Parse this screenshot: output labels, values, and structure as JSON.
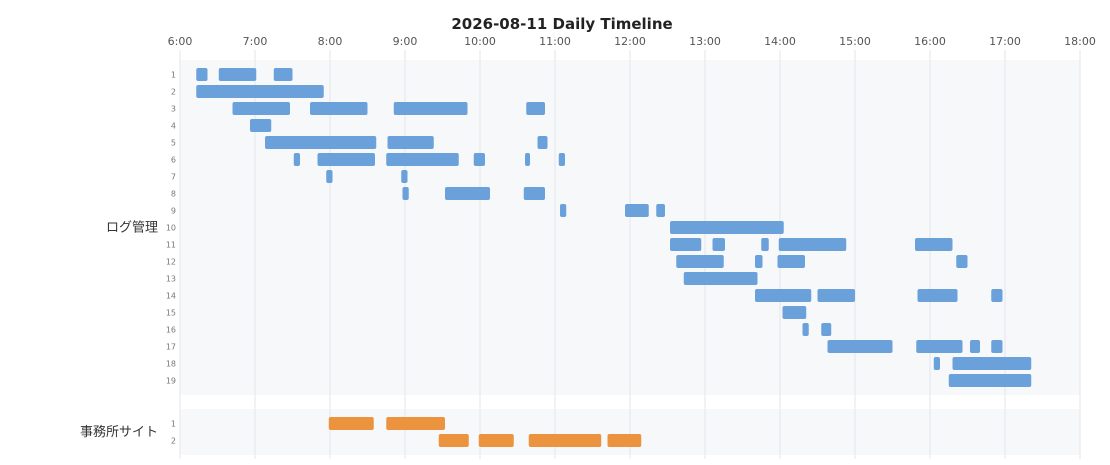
{
  "chart_data": {
    "type": "gantt",
    "title": "2026-08-11 Daily Timeline",
    "x_axis": {
      "range": [
        "6:00",
        "18:00"
      ],
      "ticks": [
        "6:00",
        "7:00",
        "8:00",
        "9:00",
        "10:00",
        "11:00",
        "12:00",
        "13:00",
        "14:00",
        "15:00",
        "16:00",
        "17:00",
        "18:00"
      ]
    },
    "grid": true,
    "colors": {
      "ログ管理": "#6aa1db",
      "事務所サイト": "#ec9340",
      "panel_bg": "#f7f8fa",
      "grid": "#e4e6ea"
    },
    "groups": [
      {
        "name": "ログ管理",
        "rows": [
          {
            "label": "1",
            "tasks": [
              [
                "6:13",
                "6:22"
              ],
              [
                "6:31",
                "7:01"
              ],
              [
                "7:15",
                "7:30"
              ]
            ]
          },
          {
            "label": "2",
            "tasks": [
              [
                "6:13",
                "7:55"
              ]
            ]
          },
          {
            "label": "3",
            "tasks": [
              [
                "6:42",
                "7:28"
              ],
              [
                "7:44",
                "8:30"
              ],
              [
                "8:51",
                "9:50"
              ],
              [
                "10:37",
                "10:52"
              ]
            ]
          },
          {
            "label": "4",
            "tasks": [
              [
                "6:56",
                "7:13"
              ]
            ]
          },
          {
            "label": "5",
            "tasks": [
              [
                "7:08",
                "8:37"
              ],
              [
                "8:46",
                "9:23"
              ],
              [
                "10:46",
                "10:54"
              ]
            ]
          },
          {
            "label": "6",
            "tasks": [
              [
                "7:31",
                "7:36"
              ],
              [
                "7:50",
                "8:36"
              ],
              [
                "8:45",
                "9:43"
              ],
              [
                "9:55",
                "10:04"
              ],
              [
                "10:36",
                "10:40"
              ],
              [
                "11:03",
                "11:08"
              ]
            ]
          },
          {
            "label": "7",
            "tasks": [
              [
                "7:57",
                "8:02"
              ],
              [
                "8:57",
                "9:02"
              ]
            ]
          },
          {
            "label": "8",
            "tasks": [
              [
                "8:58",
                "9:03"
              ],
              [
                "9:32",
                "10:08"
              ],
              [
                "10:35",
                "10:52"
              ]
            ]
          },
          {
            "label": "9",
            "tasks": [
              [
                "11:04",
                "11:09"
              ],
              [
                "11:56",
                "12:15"
              ],
              [
                "12:21",
                "12:28"
              ]
            ]
          },
          {
            "label": "10",
            "tasks": [
              [
                "12:32",
                "14:03"
              ]
            ]
          },
          {
            "label": "11",
            "tasks": [
              [
                "12:32",
                "12:57"
              ],
              [
                "13:06",
                "13:16"
              ],
              [
                "13:45",
                "13:51"
              ],
              [
                "13:59",
                "14:53"
              ],
              [
                "15:48",
                "16:18"
              ]
            ]
          },
          {
            "label": "12",
            "tasks": [
              [
                "12:37",
                "13:15"
              ],
              [
                "13:40",
                "13:46"
              ],
              [
                "13:58",
                "14:20"
              ],
              [
                "16:21",
                "16:30"
              ]
            ]
          },
          {
            "label": "13",
            "tasks": [
              [
                "12:43",
                "13:42"
              ]
            ]
          },
          {
            "label": "14",
            "tasks": [
              [
                "13:40",
                "14:25"
              ],
              [
                "14:30",
                "15:00"
              ],
              [
                "15:50",
                "16:22"
              ],
              [
                "16:49",
                "16:58"
              ]
            ]
          },
          {
            "label": "15",
            "tasks": [
              [
                "14:02",
                "14:21"
              ]
            ]
          },
          {
            "label": "16",
            "tasks": [
              [
                "14:18",
                "14:23"
              ],
              [
                "14:33",
                "14:41"
              ]
            ]
          },
          {
            "label": "17",
            "tasks": [
              [
                "14:38",
                "15:30"
              ],
              [
                "15:49",
                "16:26"
              ],
              [
                "16:32",
                "16:40"
              ],
              [
                "16:49",
                "16:58"
              ]
            ]
          },
          {
            "label": "18",
            "tasks": [
              [
                "16:03",
                "16:08"
              ],
              [
                "16:18",
                "17:21"
              ]
            ]
          },
          {
            "label": "19",
            "tasks": [
              [
                "16:15",
                "17:21"
              ]
            ]
          }
        ]
      },
      {
        "name": "事務所サイト",
        "rows": [
          {
            "label": "1",
            "tasks": [
              [
                "7:59",
                "8:35"
              ],
              [
                "8:45",
                "9:32"
              ]
            ]
          },
          {
            "label": "2",
            "tasks": [
              [
                "9:27",
                "9:51"
              ],
              [
                "9:59",
                "10:27"
              ],
              [
                "10:39",
                "11:37"
              ],
              [
                "11:42",
                "12:09"
              ]
            ]
          }
        ]
      }
    ]
  }
}
